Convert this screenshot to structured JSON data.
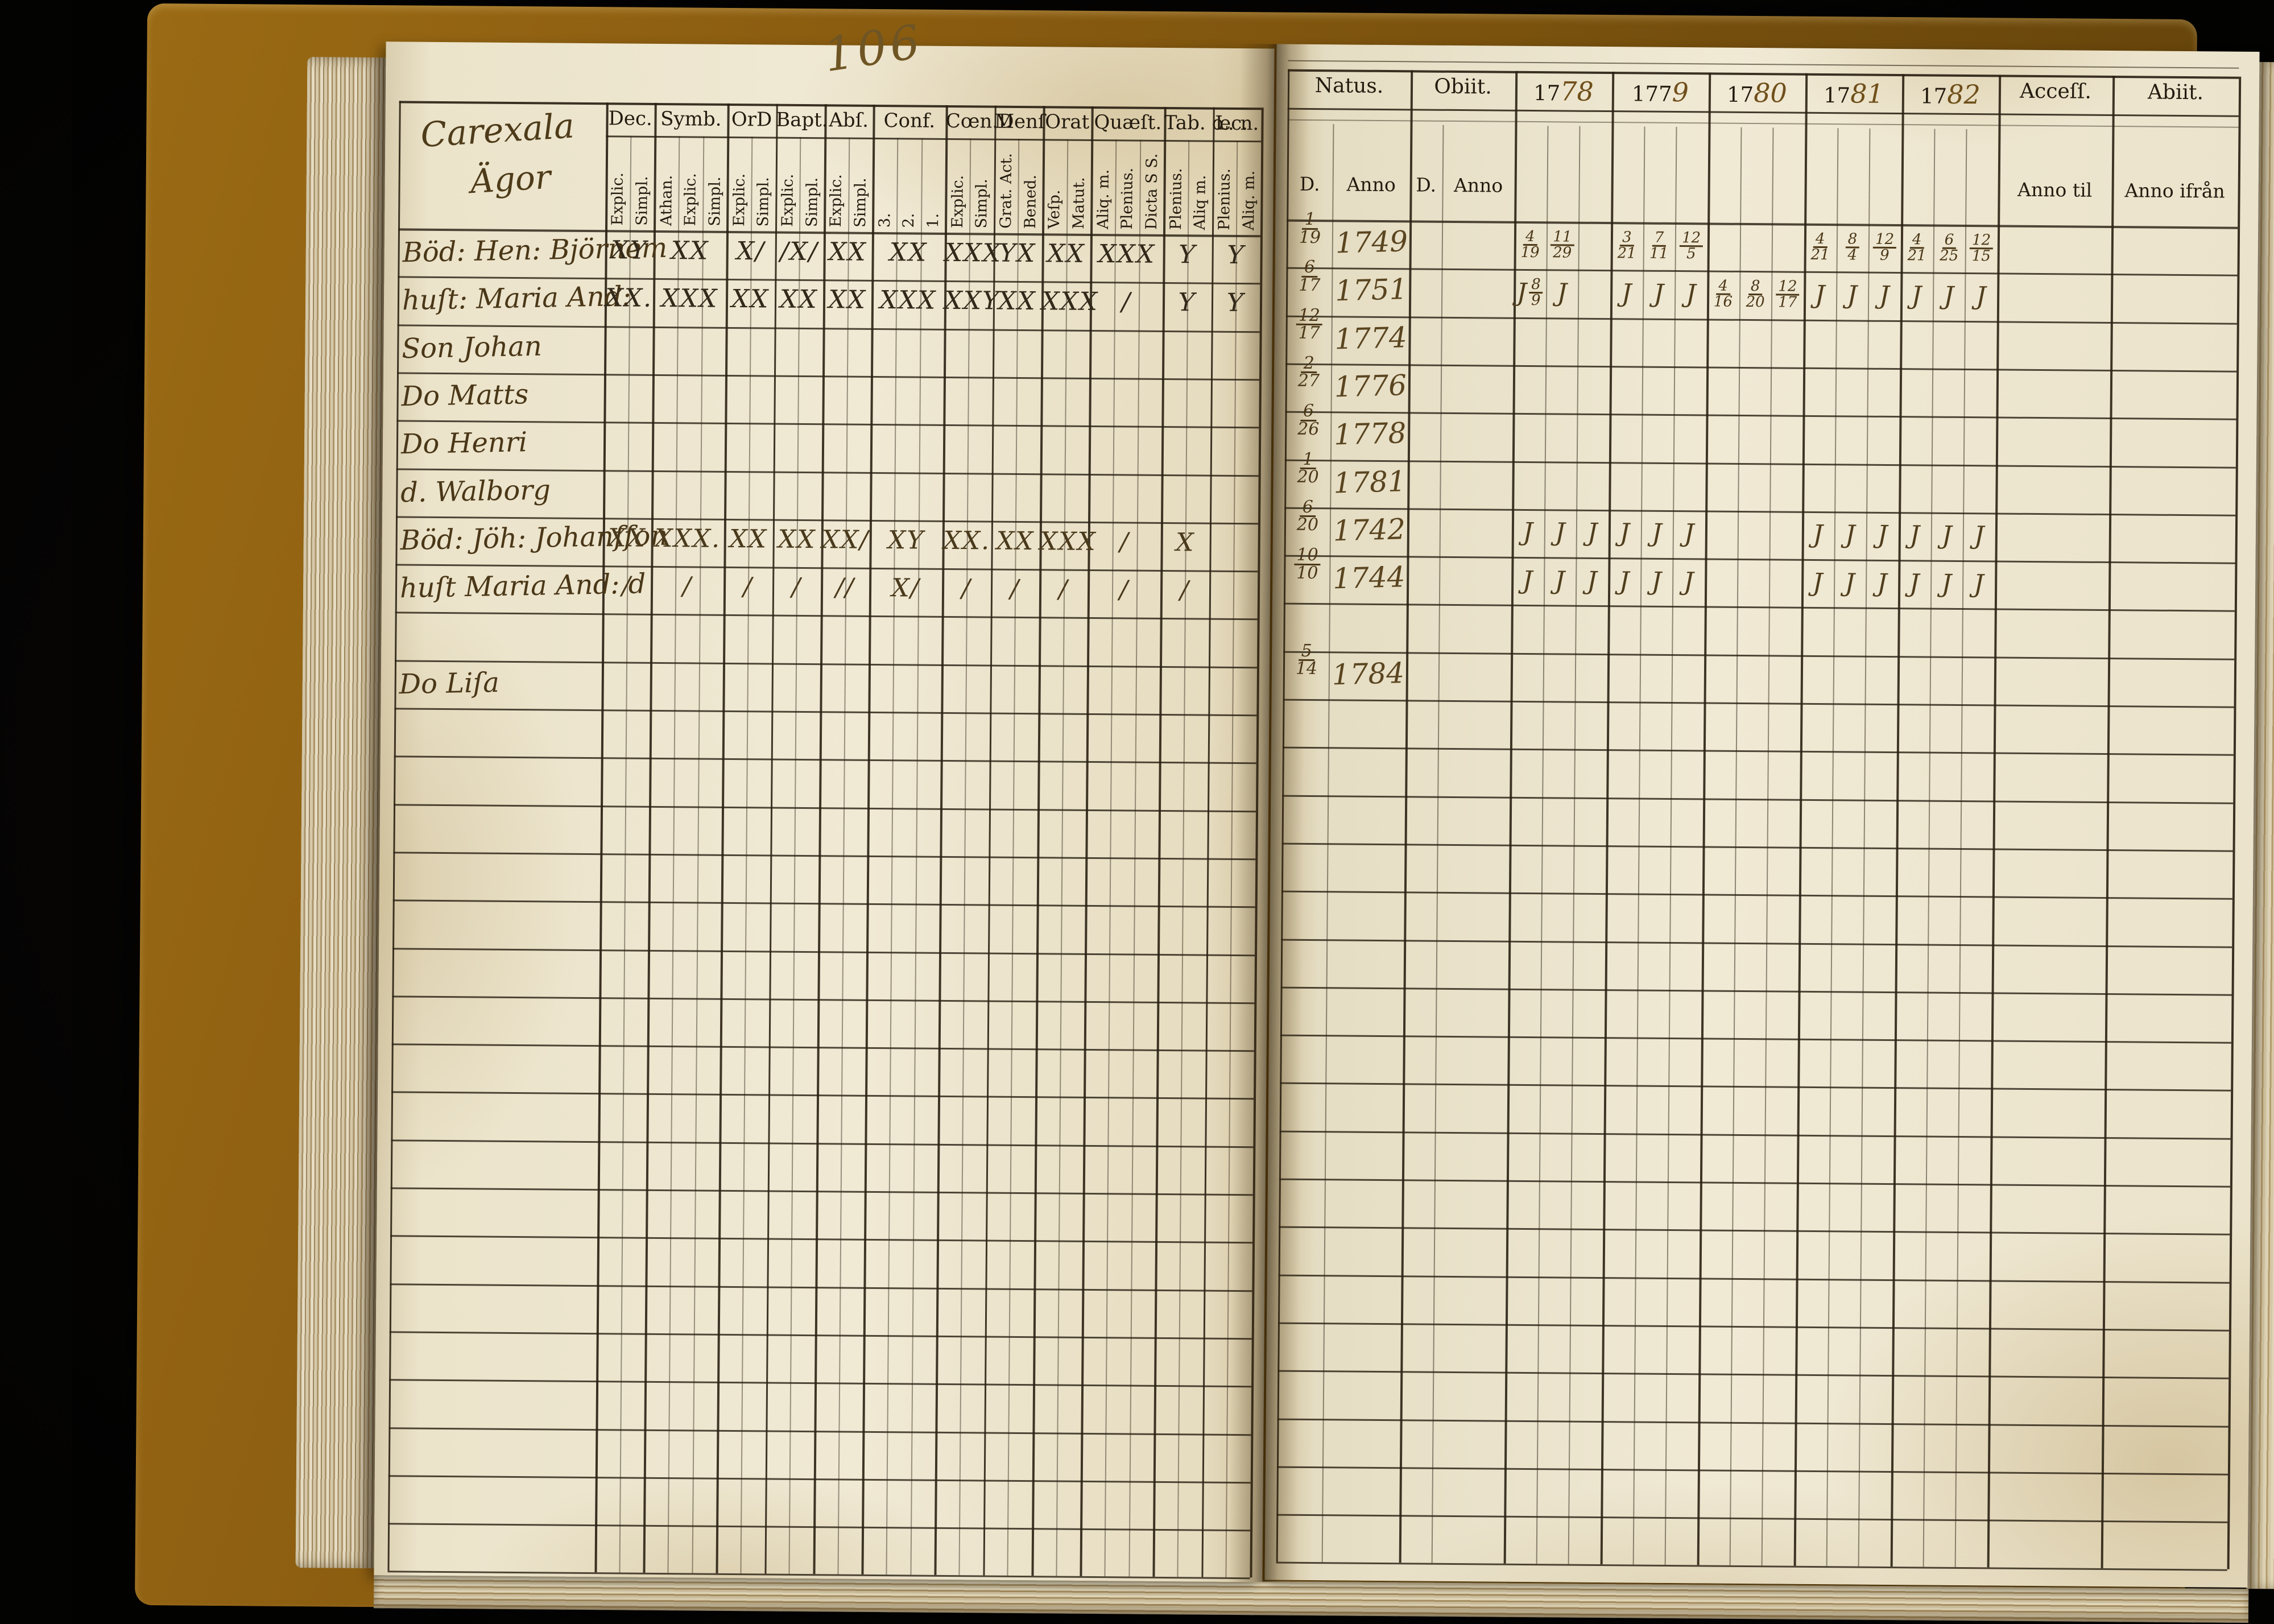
{
  "page_number": "106",
  "ink_colors": {
    "printed": "#241b0f",
    "handwriting_dark": "#33291a",
    "handwriting_brown": "#5a4520",
    "handwriting_faded": "#7a6230",
    "grid_line": "#2a2113"
  },
  "left_page": {
    "title_lines": [
      "Carexala",
      "Ägor"
    ],
    "columns": [
      {
        "label": "Dec.",
        "subs": [
          "Explic.",
          "Simpl."
        ]
      },
      {
        "label": "Symb.",
        "subs": [
          "Athan.",
          "Explic.",
          "Simpl."
        ]
      },
      {
        "label": "OrD",
        "subs": [
          "Explic.",
          "Simpl."
        ]
      },
      {
        "label": "Bapt.",
        "subs": [
          "Explic.",
          "Simpl."
        ]
      },
      {
        "label": "Abſ.",
        "subs": [
          "Explic.",
          "Simpl."
        ]
      },
      {
        "label": "Conf.",
        "subs": [
          "3.",
          "2.",
          "1."
        ]
      },
      {
        "label": "Cœn.D",
        "subs": [
          "Explic.",
          "Simpl."
        ]
      },
      {
        "label": "Menſ",
        "subs": [
          "Grat. Act.",
          "Bened."
        ]
      },
      {
        "label": "Orat",
        "subs": [
          "Veſp.",
          "Matut."
        ]
      },
      {
        "label": "Quæſt.",
        "subs": [
          "Aliq. m.",
          "Plenius.",
          "Dicta S S."
        ]
      },
      {
        "label": "Tab. œc.",
        "subs": [
          "Plenius.",
          "Aliq m."
        ]
      },
      {
        "label": "L. n.",
        "subs": [
          "Plenius.",
          "Aliq. m."
        ]
      }
    ],
    "rows": [
      {
        "name": "Böd: Hen: Björnem",
        "marks": [
          "XY",
          "XX",
          "X/",
          "/X/",
          "XX",
          "XX",
          "XXX",
          "YX",
          "XX",
          "XXX",
          "Y",
          "Y"
        ]
      },
      {
        "name": "huſt: Maria And:",
        "marks": [
          "XX.",
          "XXX",
          "XX",
          "XX",
          "XX",
          "XXX",
          "XXY",
          "XX",
          "XXX",
          "/",
          "Y",
          "Y"
        ]
      },
      {
        "name": "Son Johan",
        "marks": [
          "",
          "",
          "",
          "",
          "",
          "",
          "",
          "",
          "",
          "",
          "",
          ""
        ]
      },
      {
        "name": "Do Matts",
        "marks": [
          "",
          "",
          "",
          "",
          "",
          "",
          "",
          "",
          "",
          "",
          "",
          ""
        ]
      },
      {
        "name": "Do Henri",
        "marks": [
          "",
          "",
          "",
          "",
          "",
          "",
          "",
          "",
          "",
          "",
          "",
          ""
        ]
      },
      {
        "name": "d. Walborg",
        "marks": [
          "",
          "",
          "",
          "",
          "",
          "",
          "",
          "",
          "",
          "",
          "",
          ""
        ]
      },
      {
        "name": "Böd: Jöh: Johanſſon",
        "marks": [
          "XX",
          "XXX.",
          "XX",
          "XX",
          "XX/",
          "XY",
          "XX.",
          "XX",
          "XXX",
          "/",
          "X",
          ""
        ]
      },
      {
        "name": "huſt Maria And: d",
        "marks": [
          "/",
          "/",
          "/",
          "/",
          "//",
          "X/",
          "/",
          "/",
          "/",
          "/",
          "/",
          ""
        ]
      },
      {
        "name": "",
        "marks": [
          "",
          "",
          "",
          "",
          "",
          "",
          "",
          "",
          "",
          "",
          "",
          ""
        ]
      },
      {
        "name": "Do Liſa",
        "marks": [
          "",
          "",
          "",
          "",
          "",
          "",
          "",
          "",
          "",
          "",
          "",
          ""
        ]
      }
    ]
  },
  "right_page": {
    "headers": {
      "natus": "Natus.",
      "obiit": "Obiit.",
      "access": "Acceſſ.",
      "abiit": "Abiit."
    },
    "sub_headers": {
      "d": "D.",
      "anno": "Anno",
      "anno_til": "Anno til",
      "anno_ifran": "Anno ifrån"
    },
    "years": [
      {
        "printed": "17",
        "hand": "78"
      },
      {
        "printed": "177",
        "hand": "9"
      },
      {
        "printed": "17",
        "hand": "80"
      },
      {
        "printed": "17",
        "hand": "81"
      },
      {
        "printed": "17",
        "hand": "82"
      }
    ],
    "rows": [
      {
        "natus_d": "1/19",
        "natus_anno": "1749",
        "year_marks": [
          [
            "4/19",
            "11/29",
            ""
          ],
          [
            "3/21",
            "7/11",
            "12/5"
          ],
          [
            "",
            "",
            ""
          ],
          [
            "4/21",
            "8/4",
            "12/9"
          ],
          [
            "4/21",
            "6/25",
            "12/15"
          ]
        ]
      },
      {
        "natus_d": "6/17",
        "natus_anno": "1751",
        "year_marks": [
          [
            "J 8/9",
            "J",
            ""
          ],
          [
            "J",
            "J",
            "J"
          ],
          [
            "4/16",
            "8/20",
            "12/17"
          ],
          [
            "J",
            "J",
            "J"
          ],
          [
            "J",
            "J",
            "J"
          ]
        ]
      },
      {
        "natus_d": "12/17",
        "natus_anno": "1774",
        "year_marks": [
          [
            "",
            "",
            ""
          ],
          [
            "",
            "",
            ""
          ],
          [
            "",
            "",
            ""
          ],
          [
            "",
            "",
            ""
          ],
          [
            "",
            "",
            ""
          ]
        ]
      },
      {
        "natus_d": "2/27",
        "natus_anno": "1776",
        "year_marks": [
          [
            "",
            "",
            ""
          ],
          [
            "",
            "",
            ""
          ],
          [
            "",
            "",
            ""
          ],
          [
            "",
            "",
            ""
          ],
          [
            "",
            "",
            ""
          ]
        ]
      },
      {
        "natus_d": "6/26",
        "natus_anno": "1778",
        "year_marks": [
          [
            "",
            "",
            ""
          ],
          [
            "",
            "",
            ""
          ],
          [
            "",
            "",
            ""
          ],
          [
            "",
            "",
            ""
          ],
          [
            "",
            "",
            ""
          ]
        ]
      },
      {
        "natus_d": "1/20",
        "natus_anno": "1781",
        "year_marks": [
          [
            "",
            "",
            ""
          ],
          [
            "",
            "",
            ""
          ],
          [
            "",
            "",
            ""
          ],
          [
            "",
            "",
            ""
          ],
          [
            "",
            "",
            ""
          ]
        ]
      },
      {
        "natus_d": "6/20",
        "natus_anno": "1742",
        "year_marks": [
          [
            "J",
            "J",
            "J"
          ],
          [
            "J",
            "J",
            "J"
          ],
          [
            "",
            "",
            ""
          ],
          [
            "J",
            "J",
            "J"
          ],
          [
            "J",
            "J",
            "J"
          ]
        ]
      },
      {
        "natus_d": "10/10",
        "natus_anno": "1744",
        "year_marks": [
          [
            "J",
            "J",
            "J"
          ],
          [
            "J",
            "J",
            "J"
          ],
          [
            "",
            "",
            ""
          ],
          [
            "J",
            "J",
            "J"
          ],
          [
            "J",
            "J",
            "J"
          ]
        ]
      },
      {
        "natus_d": "",
        "natus_anno": "",
        "year_marks": [
          [
            "",
            "",
            ""
          ],
          [
            "",
            "",
            ""
          ],
          [
            "",
            "",
            ""
          ],
          [
            "",
            "",
            ""
          ],
          [
            "",
            "",
            ""
          ]
        ]
      },
      {
        "natus_d": "5/14",
        "natus_anno": "1784",
        "year_marks": [
          [
            "",
            "",
            ""
          ],
          [
            "",
            "",
            ""
          ],
          [
            "",
            "",
            ""
          ],
          [
            "",
            "",
            ""
          ],
          [
            "",
            "",
            ""
          ]
        ]
      }
    ]
  }
}
